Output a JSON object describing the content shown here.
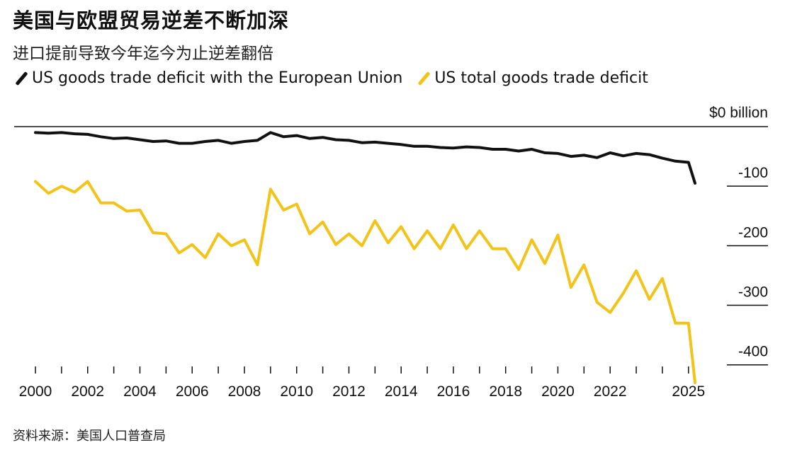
{
  "title": "美国与欧盟贸易逆差不断加深",
  "subtitle": "进口提前导致今年迄今为止逆差翻倍",
  "source": "资料来源：美国人口普查局",
  "colors": {
    "eu": "#111111",
    "total": "#f2c318",
    "axis": "#111111"
  },
  "chart_data": {
    "type": "line",
    "unit_label": "$0 billion",
    "x_ticks": [
      "2000",
      "2002",
      "2004",
      "2006",
      "2008",
      "2010",
      "2012",
      "2014",
      "2016",
      "2018",
      "2020",
      "2022",
      "2025"
    ],
    "y_ticks": [
      "-100",
      "-200",
      "-300",
      "-400"
    ],
    "ylim": [
      -430,
      0
    ],
    "xlim": [
      2000,
      2025.25
    ],
    "legend": [
      "US goods trade deficit with the European Union",
      "US total goods trade deficit"
    ],
    "series": [
      {
        "name": "US goods trade deficit with the European Union",
        "color": "#111111",
        "x": [
          2000.0,
          2000.5,
          2001.0,
          2001.5,
          2002.0,
          2002.5,
          2003.0,
          2003.5,
          2004.0,
          2004.5,
          2005.0,
          2005.5,
          2006.0,
          2006.5,
          2007.0,
          2007.5,
          2008.0,
          2008.5,
          2009.0,
          2009.5,
          2010.0,
          2010.5,
          2011.0,
          2011.5,
          2012.0,
          2012.5,
          2013.0,
          2013.5,
          2014.0,
          2014.5,
          2015.0,
          2015.5,
          2016.0,
          2016.5,
          2017.0,
          2017.5,
          2018.0,
          2018.5,
          2019.0,
          2019.5,
          2020.0,
          2020.5,
          2021.0,
          2021.5,
          2022.0,
          2022.5,
          2023.0,
          2023.5,
          2024.0,
          2024.5,
          2025.0,
          2025.25
        ],
        "values": [
          -10,
          -11,
          -10,
          -12,
          -13,
          -17,
          -20,
          -19,
          -22,
          -25,
          -24,
          -28,
          -28,
          -25,
          -23,
          -28,
          -25,
          -23,
          -10,
          -17,
          -15,
          -20,
          -18,
          -22,
          -23,
          -27,
          -26,
          -28,
          -30,
          -33,
          -33,
          -35,
          -36,
          -34,
          -35,
          -38,
          -38,
          -41,
          -38,
          -44,
          -45,
          -50,
          -48,
          -52,
          -44,
          -49,
          -45,
          -47,
          -53,
          -58,
          -60,
          -95
        ]
      },
      {
        "name": "US total goods trade deficit",
        "color": "#f2c318",
        "x": [
          2000.0,
          2000.5,
          2001.0,
          2001.5,
          2002.0,
          2002.5,
          2003.0,
          2003.5,
          2004.0,
          2004.5,
          2005.0,
          2005.5,
          2006.0,
          2006.5,
          2007.0,
          2007.5,
          2008.0,
          2008.5,
          2009.0,
          2009.5,
          2010.0,
          2010.5,
          2011.0,
          2011.5,
          2012.0,
          2012.5,
          2013.0,
          2013.5,
          2014.0,
          2014.5,
          2015.0,
          2015.5,
          2016.0,
          2016.5,
          2017.0,
          2017.5,
          2018.0,
          2018.5,
          2019.0,
          2019.5,
          2020.0,
          2020.5,
          2021.0,
          2021.5,
          2022.0,
          2022.5,
          2023.0,
          2023.5,
          2024.0,
          2024.5,
          2025.0,
          2025.25
        ],
        "values": [
          -92,
          -112,
          -100,
          -110,
          -92,
          -128,
          -128,
          -142,
          -140,
          -178,
          -180,
          -212,
          -198,
          -220,
          -180,
          -200,
          -190,
          -232,
          -105,
          -140,
          -130,
          -180,
          -160,
          -198,
          -180,
          -200,
          -158,
          -195,
          -168,
          -205,
          -175,
          -205,
          -165,
          -205,
          -175,
          -205,
          -205,
          -240,
          -190,
          -230,
          -182,
          -270,
          -232,
          -295,
          -312,
          -280,
          -242,
          -290,
          -255,
          -330,
          -330,
          -430
        ]
      }
    ]
  }
}
